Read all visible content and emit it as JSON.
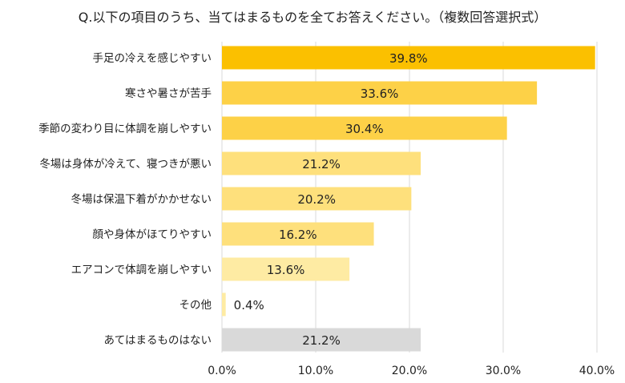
{
  "chart_data": {
    "type": "bar",
    "orientation": "horizontal",
    "title": "Q.以下の項目のうち、当てはまるものを全てお答えください。（複数回答選択式）",
    "categories": [
      "手足の冷えを感じやすい",
      "寒さや暑さが苦手",
      "季節の変わり目に体調を崩しやすい",
      "冬場は身体が冷えて、寝つきが悪い",
      "冬場は保温下着がかかせない",
      "顔や身体がほてりやすい",
      "エアコンで体調を崩しやすい",
      "その他",
      "あてはまるものはない"
    ],
    "values": [
      39.8,
      33.6,
      30.4,
      21.2,
      20.2,
      16.2,
      13.6,
      0.4,
      21.2
    ],
    "value_labels": [
      "39.8%",
      "33.6%",
      "30.4%",
      "21.2%",
      "20.2%",
      "16.2%",
      "13.6%",
      "0.4%",
      "21.2%"
    ],
    "colors": [
      "#FBC000",
      "#FDD147",
      "#FDD147",
      "#FEE07C",
      "#FEE07C",
      "#FEE07C",
      "#FEEBA3",
      "#FEEBA3",
      "#D9D9D9"
    ],
    "xlim": [
      0,
      40
    ],
    "xticks": [
      "0.0%",
      "10.0%",
      "20.0%",
      "30.0%",
      "40.0%"
    ],
    "grid": true
  }
}
